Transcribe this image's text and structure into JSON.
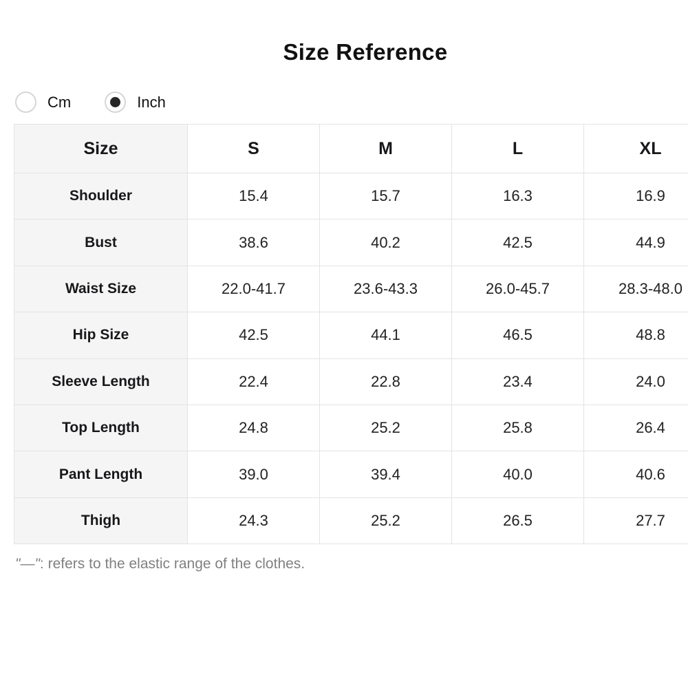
{
  "title": "Size Reference",
  "unit_toggle": {
    "options": [
      {
        "label": "Cm",
        "selected": false
      },
      {
        "label": "Inch",
        "selected": true
      }
    ]
  },
  "table": {
    "header": [
      "Size",
      "S",
      "M",
      "L",
      "XL"
    ],
    "rows": [
      {
        "label": "Shoulder",
        "values": [
          "15.4",
          "15.7",
          "16.3",
          "16.9"
        ]
      },
      {
        "label": "Bust",
        "values": [
          "38.6",
          "40.2",
          "42.5",
          "44.9"
        ]
      },
      {
        "label": "Waist Size",
        "values": [
          "22.0-41.7",
          "23.6-43.3",
          "26.0-45.7",
          "28.3-48.0"
        ]
      },
      {
        "label": "Hip Size",
        "values": [
          "42.5",
          "44.1",
          "46.5",
          "48.8"
        ]
      },
      {
        "label": "Sleeve Length",
        "values": [
          "22.4",
          "22.8",
          "23.4",
          "24.0"
        ]
      },
      {
        "label": "Top Length",
        "values": [
          "24.8",
          "25.2",
          "25.8",
          "26.4"
        ]
      },
      {
        "label": "Pant Length",
        "values": [
          "39.0",
          "39.4",
          "40.0",
          "40.6"
        ]
      },
      {
        "label": "Thigh",
        "values": [
          "24.3",
          "25.2",
          "26.5",
          "27.7"
        ]
      }
    ]
  },
  "footnote": {
    "symbol": "\"—\"",
    "text": ": refers to the elastic range of the clothes."
  },
  "colors": {
    "row_label_background": "#f5f5f5",
    "table_border": "#e3e3e3",
    "text": "#18181b",
    "footnote_text": "#808080",
    "radio_ring": "#d6d6d6",
    "radio_dot": "#262626"
  }
}
